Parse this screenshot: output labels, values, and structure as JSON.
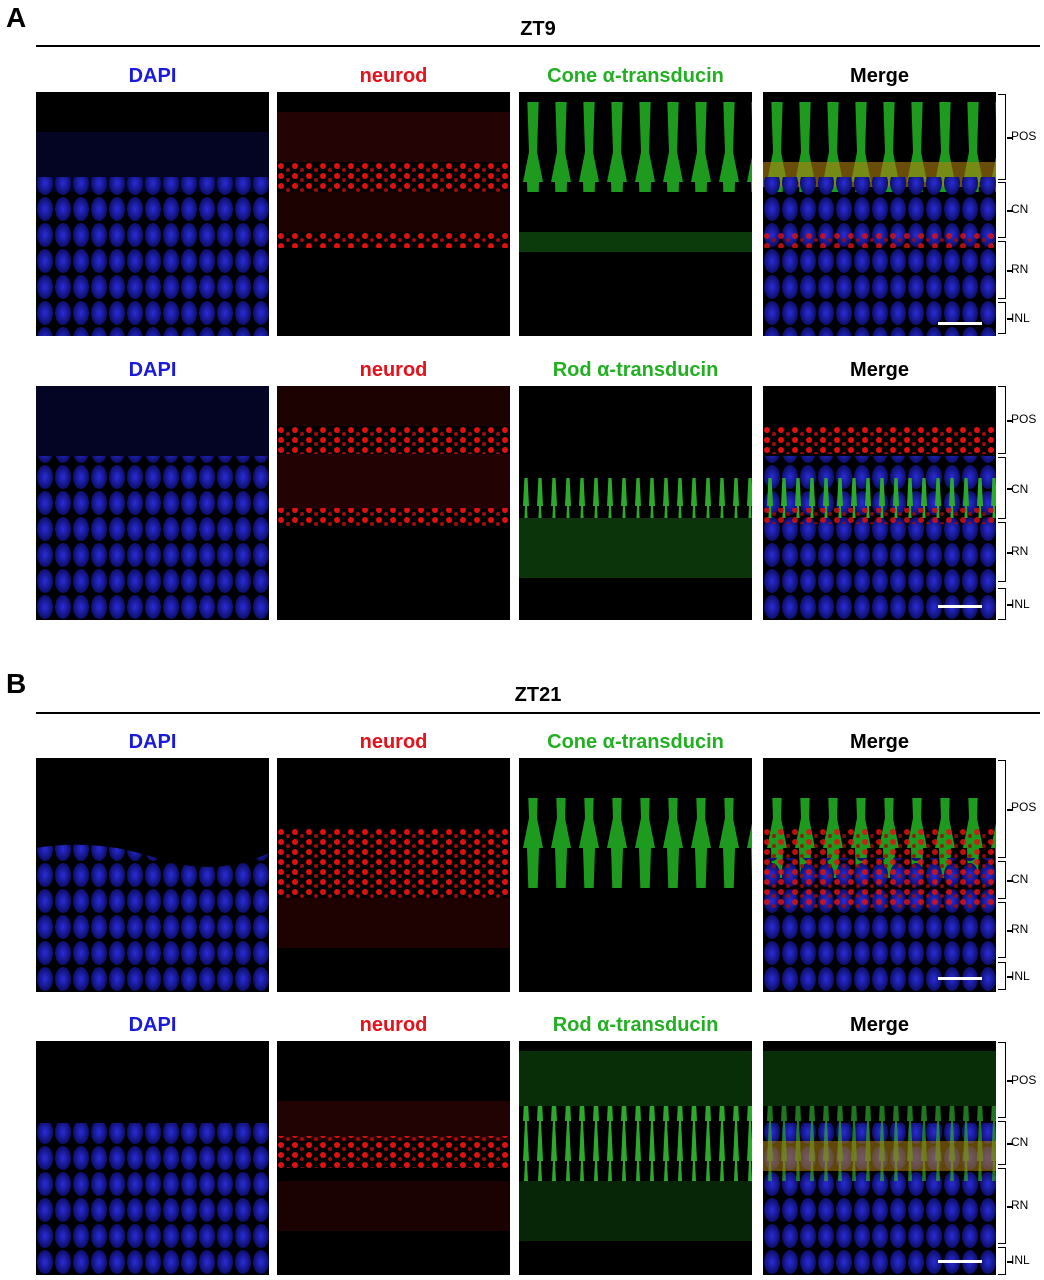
{
  "panels": [
    {
      "letter": "A",
      "timepoint": "ZT9",
      "rows": [
        {
          "labels": [
            {
              "text": "DAPI",
              "color": "#1a1adb"
            },
            {
              "text": "neurod",
              "color": "#e3121b"
            },
            {
              "text": "Cone α-transducin",
              "color": "#22b022"
            },
            {
              "text": "Merge",
              "color": "#000000"
            }
          ],
          "layers": [
            "POS",
            "CN",
            "RN",
            "INL"
          ]
        },
        {
          "labels": [
            {
              "text": "DAPI",
              "color": "#1a1adb"
            },
            {
              "text": "neurod",
              "color": "#e3121b"
            },
            {
              "text": "Rod α-transducin",
              "color": "#22b022"
            },
            {
              "text": "Merge",
              "color": "#000000"
            }
          ],
          "layers": [
            "POS",
            "CN",
            "RN",
            "INL"
          ]
        }
      ]
    },
    {
      "letter": "B",
      "timepoint": "ZT21",
      "rows": [
        {
          "labels": [
            {
              "text": "DAPI",
              "color": "#1a1adb"
            },
            {
              "text": "neurod",
              "color": "#e3121b"
            },
            {
              "text": "Cone α-transducin",
              "color": "#22b022"
            },
            {
              "text": "Merge",
              "color": "#000000"
            }
          ],
          "layers": [
            "POS",
            "CN",
            "RN",
            "INL"
          ]
        },
        {
          "labels": [
            {
              "text": "DAPI",
              "color": "#1a1adb"
            },
            {
              "text": "neurod",
              "color": "#e3121b"
            },
            {
              "text": "Rod α-transducin",
              "color": "#22b022"
            },
            {
              "text": "Merge",
              "color": "#000000"
            }
          ],
          "layers": [
            "POS",
            "CN",
            "RN",
            "INL"
          ]
        }
      ]
    }
  ]
}
